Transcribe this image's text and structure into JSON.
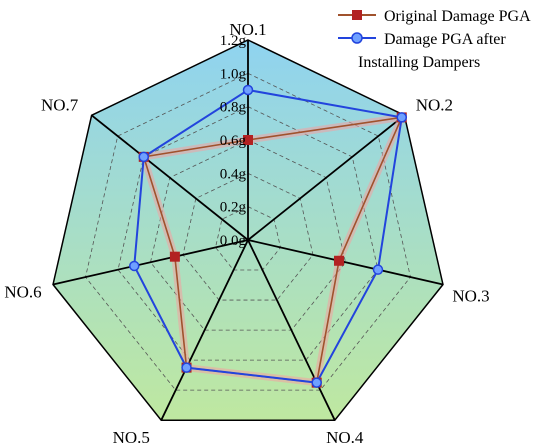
{
  "chart_data": {
    "type": "radar",
    "categories": [
      "NO.1",
      "NO.2",
      "NO.3",
      "NO.4",
      "NO.5",
      "NO.6",
      "NO.7"
    ],
    "r_ticks": [
      0.0,
      0.2,
      0.4,
      0.6,
      0.8,
      1.0,
      1.2
    ],
    "r_tick_labels": [
      "0.0g",
      "0.2g",
      "0.4g",
      "0.6g",
      "0.8g",
      "1.0g",
      "1.2g"
    ],
    "rlim": [
      0,
      1.2
    ],
    "grid": true,
    "legend_position": "top-right",
    "series": [
      {
        "name": "Original Damage PGA",
        "color": "#b22222",
        "marker": "square",
        "values": [
          0.6,
          1.18,
          0.56,
          0.95,
          0.85,
          0.45,
          0.8
        ]
      },
      {
        "name": "Damage PGA after Installing Dampers",
        "color": "#2244dd",
        "marker": "circle",
        "values": [
          0.9,
          1.18,
          0.8,
          0.95,
          0.85,
          0.7,
          0.8
        ]
      }
    ],
    "fill_gradient": {
      "top": "#8fd3f0",
      "bottom": "#bfe8a0"
    }
  }
}
